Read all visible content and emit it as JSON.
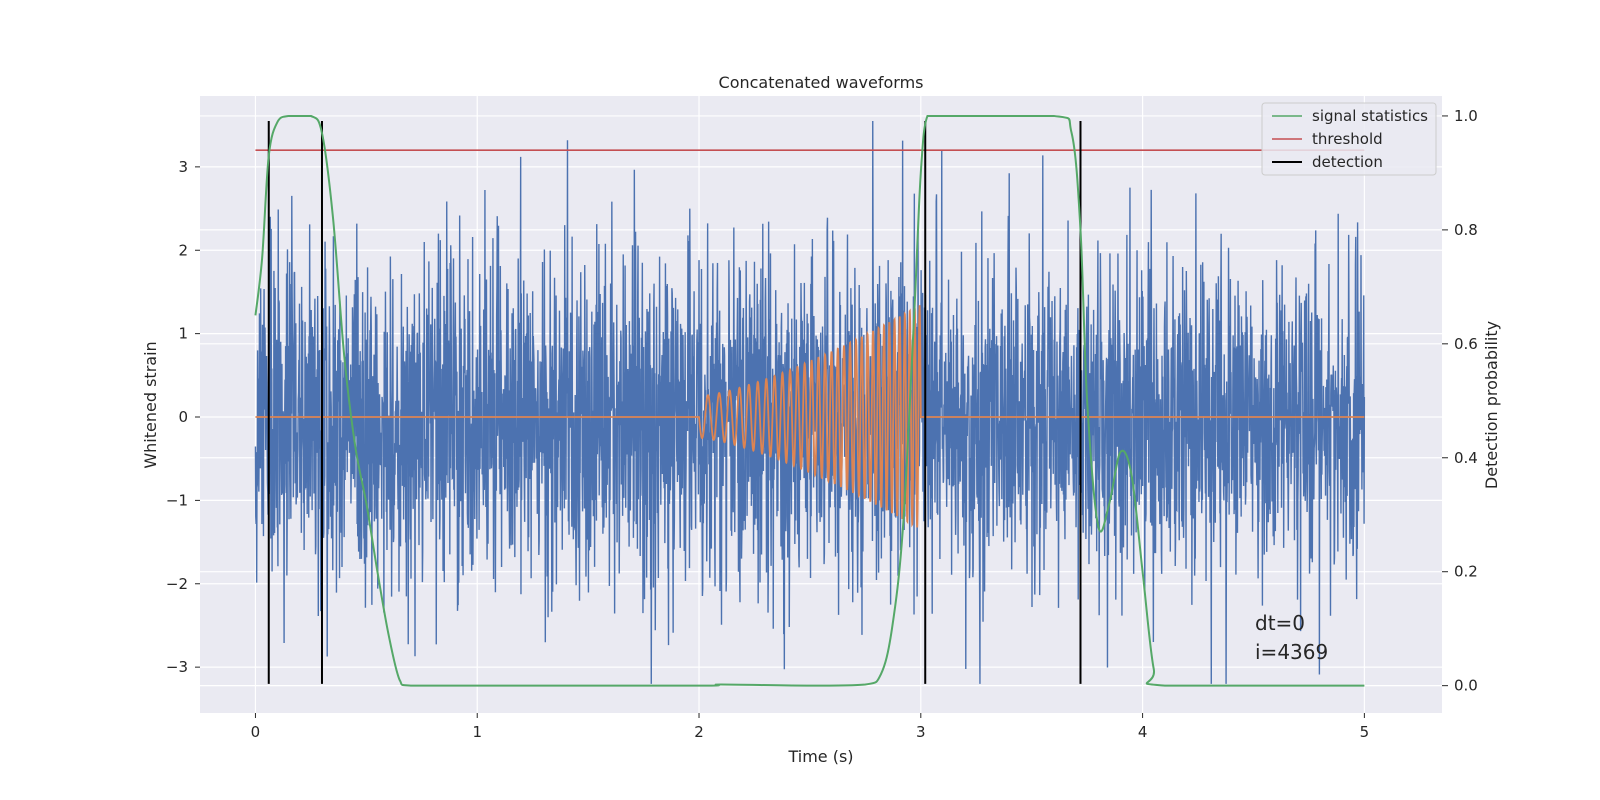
{
  "chart_data": {
    "type": "line",
    "title": "Concatenated waveforms",
    "xlabel": "Time (s)",
    "ylabel": "Whitened strain",
    "ylabel_right": "Detection probability",
    "xlim": [
      -0.25,
      5.35
    ],
    "ylim": [
      -3.55,
      3.85
    ],
    "ylim_right": [
      -0.048,
      1.035
    ],
    "xticks": [
      0,
      1,
      2,
      3,
      4,
      5
    ],
    "yticks": [
      -3,
      -2,
      -1,
      0,
      1,
      2,
      3
    ],
    "yticks_right": [
      0.0,
      0.2,
      0.4,
      0.6,
      0.8,
      1.0
    ],
    "xtick_labels": [
      "0",
      "1",
      "2",
      "3",
      "4",
      "5"
    ],
    "ytick_labels": [
      "−3",
      "−2",
      "−1",
      "0",
      "1",
      "2",
      "3"
    ],
    "ytick_right_labels": [
      "0.0",
      "0.2",
      "0.4",
      "0.6",
      "0.8",
      "1.0"
    ],
    "grid": true,
    "legend_position": "top-right",
    "colors": {
      "strain": "#4c72b0",
      "waveform": "#dd8452",
      "signal_statistics": "#55a868",
      "threshold": "#c44e52",
      "detection": "#000000",
      "background": "#eaeaf2",
      "grid": "#ffffff"
    },
    "strain": {
      "t_start": 0,
      "t_end": 5,
      "typical_abs_range": [
        -1.3,
        1.4
      ],
      "peak_range": [
        -3.2,
        3.55
      ]
    },
    "waveform": {
      "t_start": 2.0,
      "t_end": 3.0,
      "amplitude_start": 0.25,
      "amplitude_end": 1.35,
      "baseline": 0
    },
    "signal_statistics": {
      "x": [
        0,
        0.03,
        0.06,
        0.1,
        0.15,
        0.25,
        0.3,
        0.35,
        0.4,
        0.45,
        0.5,
        0.55,
        0.6,
        0.65,
        0.7,
        1.0,
        2.0,
        2.1,
        2.5,
        2.75,
        2.82,
        2.87,
        2.92,
        2.97,
        3.0,
        3.03,
        3.1,
        3.6,
        3.68,
        3.72,
        3.75,
        3.8,
        3.85,
        3.9,
        3.95,
        4.0,
        4.05,
        4.1,
        5.0
      ],
      "y": [
        0.65,
        0.75,
        0.93,
        0.99,
        1.0,
        1.0,
        0.97,
        0.82,
        0.58,
        0.42,
        0.32,
        0.2,
        0.09,
        0.01,
        0.0,
        0.0,
        0.0,
        0.002,
        0.0,
        0.002,
        0.02,
        0.1,
        0.28,
        0.65,
        0.9,
        1.0,
        1.0,
        1.0,
        0.97,
        0.8,
        0.5,
        0.28,
        0.32,
        0.41,
        0.37,
        0.2,
        0.03,
        0.0,
        0.0
      ]
    },
    "threshold": {
      "x": [
        0,
        5
      ],
      "y": 3.2
    },
    "detections": [
      0.06,
      0.3,
      3.02,
      3.72
    ],
    "detection_span": [
      -3.2,
      3.55
    ],
    "legend": [
      {
        "label": "signal statistics",
        "color": "#55a868"
      },
      {
        "label": "threshold",
        "color": "#c44e52"
      },
      {
        "label": "detection",
        "color": "#000000"
      }
    ],
    "annotations": [
      "dt=0",
      "i=4369"
    ]
  }
}
